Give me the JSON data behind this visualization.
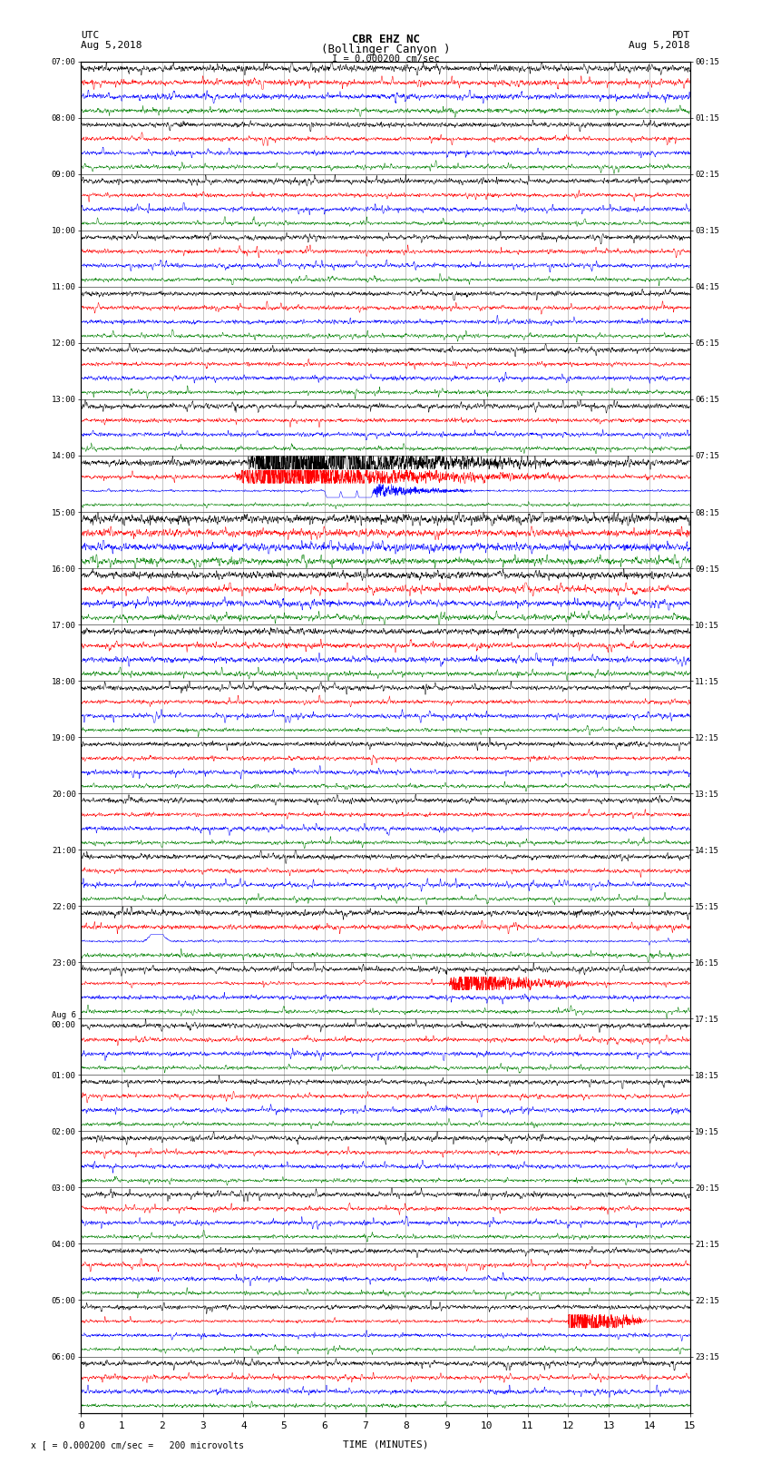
{
  "title_line1": "CBR EHZ NC",
  "title_line2": "(Bollinger Canyon )",
  "scale_text": "I = 0.000200 cm/sec",
  "left_label": "UTC",
  "left_date": "Aug 5,2018",
  "right_label": "PDT",
  "right_date": "Aug 5,2018",
  "bottom_label": "TIME (MINUTES)",
  "footnote": "x [ = 0.000200 cm/sec =   200 microvolts",
  "xlim": [
    0,
    15
  ],
  "xticks": [
    0,
    1,
    2,
    3,
    4,
    5,
    6,
    7,
    8,
    9,
    10,
    11,
    12,
    13,
    14,
    15
  ],
  "left_times": [
    "07:00",
    "08:00",
    "09:00",
    "10:00",
    "11:00",
    "12:00",
    "13:00",
    "14:00",
    "15:00",
    "16:00",
    "17:00",
    "18:00",
    "19:00",
    "20:00",
    "21:00",
    "22:00",
    "23:00",
    "Aug 6\n00:00",
    "01:00",
    "02:00",
    "03:00",
    "04:00",
    "05:00",
    "06:00"
  ],
  "right_times": [
    "00:15",
    "01:15",
    "02:15",
    "03:15",
    "04:15",
    "05:15",
    "06:15",
    "07:15",
    "08:15",
    "09:15",
    "10:15",
    "11:15",
    "12:15",
    "13:15",
    "14:15",
    "15:15",
    "16:15",
    "17:15",
    "18:15",
    "19:15",
    "20:15",
    "21:15",
    "22:15",
    "23:15"
  ],
  "trace_colors": [
    "black",
    "red",
    "blue",
    "green"
  ],
  "num_hours": 24,
  "traces_per_hour": 4,
  "fig_width": 8.5,
  "fig_height": 16.13,
  "bg_color": "white",
  "grid_color": "#888888",
  "axes_color": "black",
  "base_amp": 0.38,
  "event_hour": 7,
  "event2_hour": 15,
  "event3_hour": 16
}
